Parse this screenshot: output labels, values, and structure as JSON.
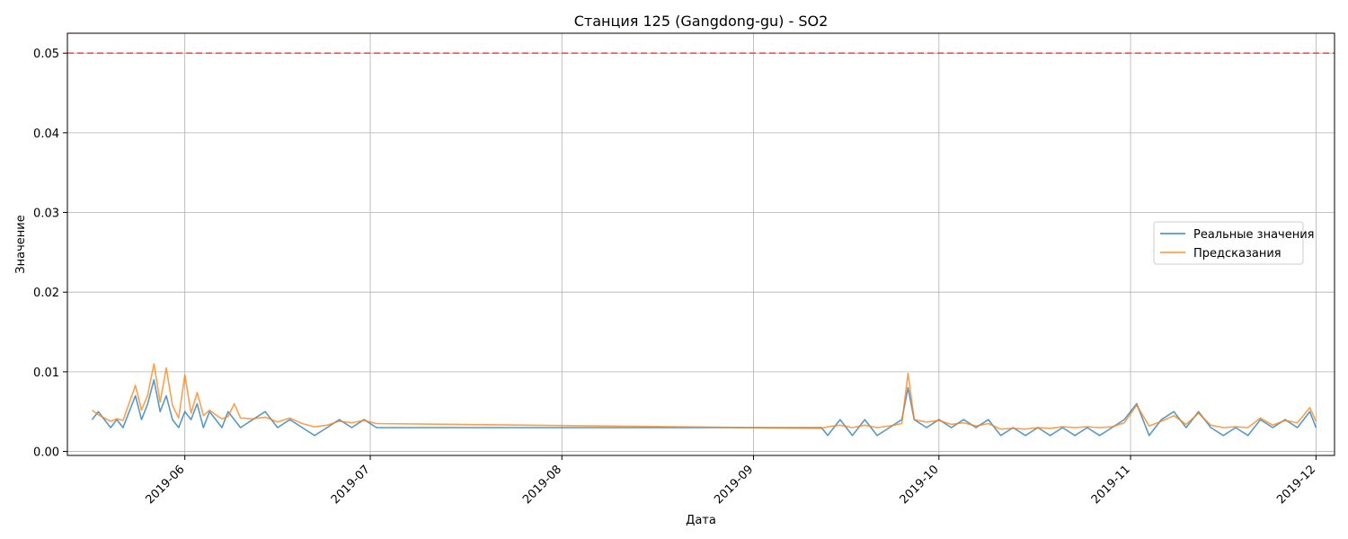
{
  "chart_data": {
    "type": "line",
    "title": "Станция 125 (Gangdong-gu) - SO2",
    "xlabel": "Дата",
    "ylabel": "Значение",
    "x_type": "date",
    "xlim": [
      "2019-05-13",
      "2019-12-04"
    ],
    "ylim": [
      -0.0005,
      0.0525
    ],
    "x_ticks": [
      "2019-06-01",
      "2019-07-01",
      "2019-08-01",
      "2019-09-01",
      "2019-10-01",
      "2019-11-01",
      "2019-12-01"
    ],
    "x_tick_labels": [
      "2019-06",
      "2019-07",
      "2019-08",
      "2019-09",
      "2019-10",
      "2019-11",
      "2019-12"
    ],
    "y_ticks": [
      0.0,
      0.01,
      0.02,
      0.03,
      0.04,
      0.05
    ],
    "y_tick_labels": [
      "0.00",
      "0.01",
      "0.02",
      "0.03",
      "0.04",
      "0.05"
    ],
    "grid": true,
    "legend_position": "right",
    "threshold": {
      "value": 0.05,
      "color": "#ff0000",
      "style": "dashed"
    },
    "series": [
      {
        "name": "Реальные значения",
        "color": "#1f77b4",
        "points": [
          [
            "2019-05-17",
            0.004
          ],
          [
            "2019-05-18",
            0.005
          ],
          [
            "2019-05-20",
            0.003
          ],
          [
            "2019-05-21",
            0.004
          ],
          [
            "2019-05-22",
            0.003
          ],
          [
            "2019-05-23",
            0.005
          ],
          [
            "2019-05-24",
            0.007
          ],
          [
            "2019-05-25",
            0.004
          ],
          [
            "2019-05-26",
            0.006
          ],
          [
            "2019-05-27",
            0.009
          ],
          [
            "2019-05-28",
            0.005
          ],
          [
            "2019-05-29",
            0.007
          ],
          [
            "2019-05-30",
            0.004
          ],
          [
            "2019-05-31",
            0.003
          ],
          [
            "2019-06-01",
            0.005
          ],
          [
            "2019-06-02",
            0.004
          ],
          [
            "2019-06-03",
            0.006
          ],
          [
            "2019-06-04",
            0.003
          ],
          [
            "2019-06-05",
            0.005
          ],
          [
            "2019-06-06",
            0.004
          ],
          [
            "2019-06-07",
            0.003
          ],
          [
            "2019-06-08",
            0.005
          ],
          [
            "2019-06-09",
            0.004
          ],
          [
            "2019-06-10",
            0.003
          ],
          [
            "2019-06-12",
            0.004
          ],
          [
            "2019-06-14",
            0.005
          ],
          [
            "2019-06-16",
            0.003
          ],
          [
            "2019-06-18",
            0.004
          ],
          [
            "2019-06-20",
            0.003
          ],
          [
            "2019-06-22",
            0.002
          ],
          [
            "2019-06-24",
            0.003
          ],
          [
            "2019-06-26",
            0.004
          ],
          [
            "2019-06-28",
            0.003
          ],
          [
            "2019-06-30",
            0.004
          ],
          [
            "2019-07-02",
            0.003
          ],
          [
            "2019-09-12",
            0.003
          ],
          [
            "2019-09-13",
            0.002
          ],
          [
            "2019-09-15",
            0.004
          ],
          [
            "2019-09-17",
            0.002
          ],
          [
            "2019-09-19",
            0.004
          ],
          [
            "2019-09-21",
            0.002
          ],
          [
            "2019-09-23",
            0.003
          ],
          [
            "2019-09-25",
            0.004
          ],
          [
            "2019-09-26",
            0.008
          ],
          [
            "2019-09-27",
            0.004
          ],
          [
            "2019-09-29",
            0.003
          ],
          [
            "2019-10-01",
            0.004
          ],
          [
            "2019-10-03",
            0.003
          ],
          [
            "2019-10-05",
            0.004
          ],
          [
            "2019-10-07",
            0.003
          ],
          [
            "2019-10-09",
            0.004
          ],
          [
            "2019-10-11",
            0.002
          ],
          [
            "2019-10-13",
            0.003
          ],
          [
            "2019-10-15",
            0.002
          ],
          [
            "2019-10-17",
            0.003
          ],
          [
            "2019-10-19",
            0.002
          ],
          [
            "2019-10-21",
            0.003
          ],
          [
            "2019-10-23",
            0.002
          ],
          [
            "2019-10-25",
            0.003
          ],
          [
            "2019-10-27",
            0.002
          ],
          [
            "2019-10-29",
            0.003
          ],
          [
            "2019-10-31",
            0.004
          ],
          [
            "2019-11-02",
            0.006
          ],
          [
            "2019-11-04",
            0.002
          ],
          [
            "2019-11-06",
            0.004
          ],
          [
            "2019-11-08",
            0.005
          ],
          [
            "2019-11-10",
            0.003
          ],
          [
            "2019-11-12",
            0.005
          ],
          [
            "2019-11-14",
            0.003
          ],
          [
            "2019-11-16",
            0.002
          ],
          [
            "2019-11-18",
            0.003
          ],
          [
            "2019-11-20",
            0.002
          ],
          [
            "2019-11-22",
            0.004
          ],
          [
            "2019-11-24",
            0.003
          ],
          [
            "2019-11-26",
            0.004
          ],
          [
            "2019-11-28",
            0.003
          ],
          [
            "2019-11-30",
            0.005
          ],
          [
            "2019-12-01",
            0.003
          ]
        ]
      },
      {
        "name": "Предсказания",
        "color": "#ff7f0e",
        "points": [
          [
            "2019-05-17",
            0.0052
          ],
          [
            "2019-05-18",
            0.0046
          ],
          [
            "2019-05-20",
            0.0038
          ],
          [
            "2019-05-21",
            0.0041
          ],
          [
            "2019-05-22",
            0.0039
          ],
          [
            "2019-05-23",
            0.0061
          ],
          [
            "2019-05-24",
            0.0083
          ],
          [
            "2019-05-25",
            0.0052
          ],
          [
            "2019-05-26",
            0.0071
          ],
          [
            "2019-05-27",
            0.011
          ],
          [
            "2019-05-28",
            0.0062
          ],
          [
            "2019-05-29",
            0.0105
          ],
          [
            "2019-05-30",
            0.0058
          ],
          [
            "2019-05-31",
            0.0042
          ],
          [
            "2019-06-01",
            0.0096
          ],
          [
            "2019-06-02",
            0.0048
          ],
          [
            "2019-06-03",
            0.0074
          ],
          [
            "2019-06-04",
            0.0045
          ],
          [
            "2019-06-05",
            0.0052
          ],
          [
            "2019-06-06",
            0.0046
          ],
          [
            "2019-06-07",
            0.0041
          ],
          [
            "2019-06-08",
            0.0044
          ],
          [
            "2019-06-09",
            0.006
          ],
          [
            "2019-06-10",
            0.0042
          ],
          [
            "2019-06-12",
            0.0041
          ],
          [
            "2019-06-14",
            0.0043
          ],
          [
            "2019-06-16",
            0.0037
          ],
          [
            "2019-06-18",
            0.0042
          ],
          [
            "2019-06-20",
            0.0035
          ],
          [
            "2019-06-22",
            0.0031
          ],
          [
            "2019-06-24",
            0.0033
          ],
          [
            "2019-06-26",
            0.0038
          ],
          [
            "2019-06-28",
            0.0036
          ],
          [
            "2019-06-30",
            0.0039
          ],
          [
            "2019-07-02",
            0.0035
          ],
          [
            "2019-09-12",
            0.0029
          ],
          [
            "2019-09-13",
            0.0031
          ],
          [
            "2019-09-15",
            0.0033
          ],
          [
            "2019-09-17",
            0.003
          ],
          [
            "2019-09-19",
            0.0033
          ],
          [
            "2019-09-21",
            0.003
          ],
          [
            "2019-09-23",
            0.0032
          ],
          [
            "2019-09-25",
            0.0035
          ],
          [
            "2019-09-26",
            0.0098
          ],
          [
            "2019-09-27",
            0.004
          ],
          [
            "2019-09-29",
            0.0037
          ],
          [
            "2019-10-01",
            0.0039
          ],
          [
            "2019-10-03",
            0.0034
          ],
          [
            "2019-10-05",
            0.0036
          ],
          [
            "2019-10-07",
            0.0032
          ],
          [
            "2019-10-09",
            0.0035
          ],
          [
            "2019-10-11",
            0.0028
          ],
          [
            "2019-10-13",
            0.0029
          ],
          [
            "2019-10-15",
            0.0028
          ],
          [
            "2019-10-17",
            0.003
          ],
          [
            "2019-10-19",
            0.0029
          ],
          [
            "2019-10-21",
            0.0031
          ],
          [
            "2019-10-23",
            0.003
          ],
          [
            "2019-10-25",
            0.0031
          ],
          [
            "2019-10-27",
            0.003
          ],
          [
            "2019-10-29",
            0.0031
          ],
          [
            "2019-10-31",
            0.0036
          ],
          [
            "2019-11-02",
            0.0058
          ],
          [
            "2019-11-04",
            0.0032
          ],
          [
            "2019-11-06",
            0.0038
          ],
          [
            "2019-11-08",
            0.0045
          ],
          [
            "2019-11-10",
            0.0034
          ],
          [
            "2019-11-12",
            0.0048
          ],
          [
            "2019-11-14",
            0.0033
          ],
          [
            "2019-11-16",
            0.003
          ],
          [
            "2019-11-18",
            0.0031
          ],
          [
            "2019-11-20",
            0.003
          ],
          [
            "2019-11-22",
            0.0042
          ],
          [
            "2019-11-24",
            0.0033
          ],
          [
            "2019-11-26",
            0.0039
          ],
          [
            "2019-11-28",
            0.0036
          ],
          [
            "2019-11-30",
            0.0055
          ],
          [
            "2019-12-01",
            0.0038
          ]
        ]
      }
    ]
  }
}
